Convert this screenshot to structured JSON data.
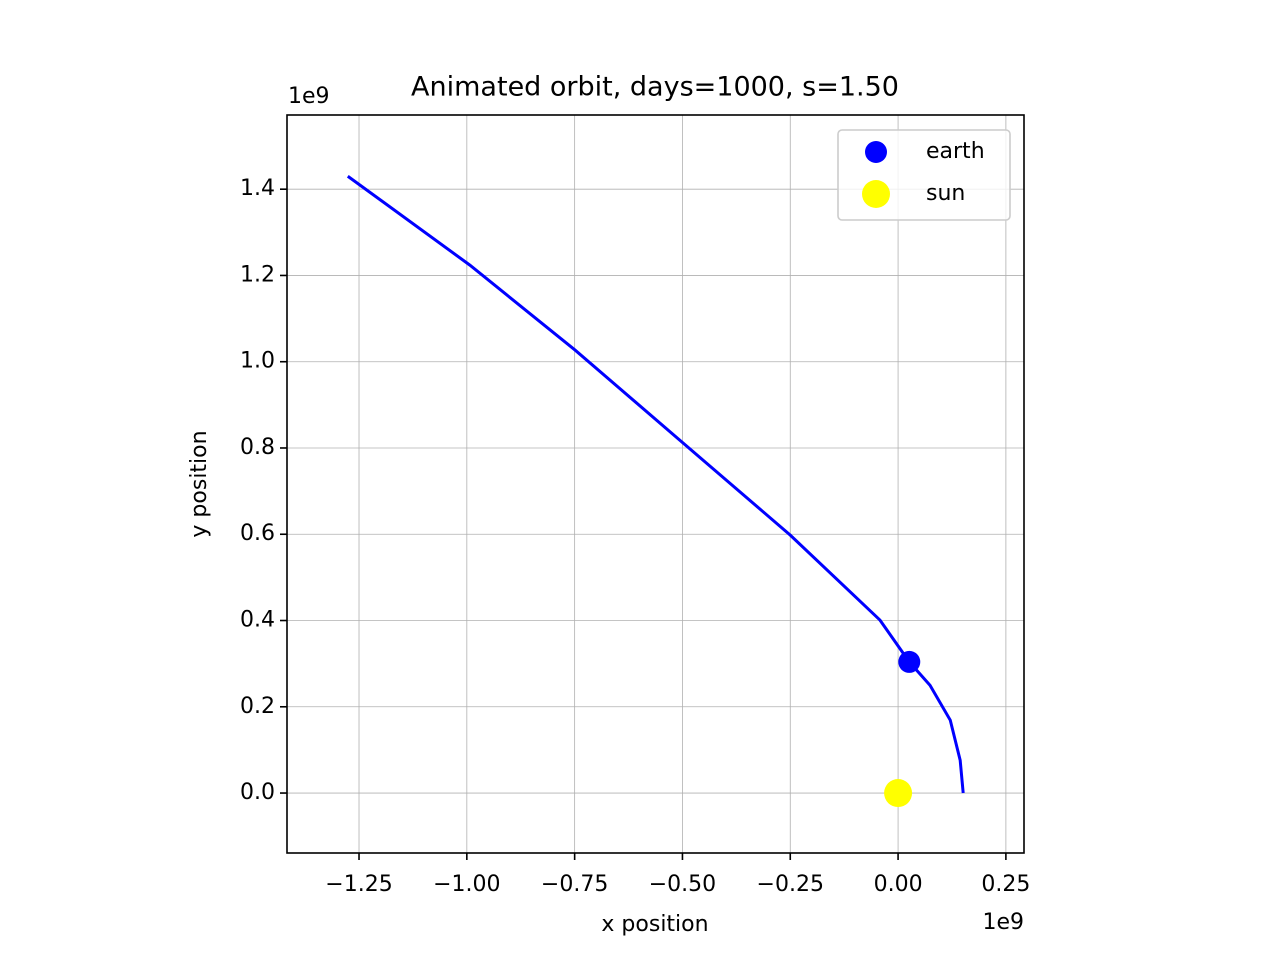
{
  "chart_data": {
    "type": "scatter",
    "title": "Animated orbit, days=1000, s=1.50",
    "xlabel": "x position",
    "ylabel": "y position",
    "x_offset": "1e9",
    "y_offset": "1e9",
    "xlim": [
      -1.417,
      0.292
    ],
    "ylim": [
      -0.139,
      1.572
    ],
    "xticks": [
      {
        "value": -1.25,
        "label": "−1.25"
      },
      {
        "value": -1.0,
        "label": "−1.00"
      },
      {
        "value": -0.75,
        "label": "−0.75"
      },
      {
        "value": -0.5,
        "label": "−0.50"
      },
      {
        "value": -0.25,
        "label": "−0.25"
      },
      {
        "value": 0,
        "label": "0.00"
      },
      0.25
    ],
    "yticks": [
      {
        "value": 0,
        "label": "0.0"
      },
      0.2,
      0.4,
      0.6,
      0.8,
      {
        "value": 1.0,
        "label": "1.0"
      },
      1.2,
      1.4
    ],
    "grid": true,
    "legend": "upper right",
    "orbit": {
      "color": "#0000ff",
      "x": [
        0.151,
        0.144,
        0.121,
        0.074,
        0.026,
        -0.042,
        -0.25,
        -0.506,
        -0.749,
        -0.993,
        -1.276
      ],
      "y": [
        0.0,
        0.076,
        0.169,
        0.25,
        0.304,
        0.401,
        0.598,
        0.818,
        1.027,
        1.224,
        1.43
      ]
    },
    "series": [
      {
        "name": "earth",
        "color": "#0000ff",
        "x": [
          0.026
        ],
        "y": [
          0.304
        ]
      },
      {
        "name": "sun",
        "color": "#ffff00",
        "x": [
          0
        ],
        "y": [
          0
        ]
      }
    ]
  }
}
